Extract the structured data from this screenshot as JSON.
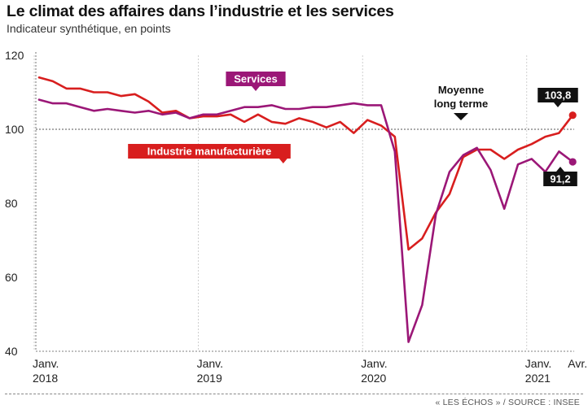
{
  "header": {
    "title": "Le climat des affaires dans l’industrie et les services",
    "subtitle": "Indicateur synthétique, en points"
  },
  "footer": {
    "source": "« LES ÉCHOS » / SOURCE : INSEE"
  },
  "colors": {
    "industrie": "#d81e1e",
    "services": "#9b1777",
    "label_box": "#111111"
  },
  "chart_data": {
    "type": "line",
    "title": "Le climat des affaires dans l’industrie et les services",
    "ylabel": "Indicateur synthétique, en points",
    "ylim": [
      40,
      120
    ],
    "yticks": [
      40,
      60,
      80,
      100,
      120
    ],
    "xticks": [
      {
        "index": 0,
        "line1": "Janv.",
        "line2": "2018"
      },
      {
        "index": 12,
        "line1": "Janv.",
        "line2": "2019"
      },
      {
        "index": 24,
        "line1": "Janv.",
        "line2": "2020"
      },
      {
        "index": 36,
        "line1": "Janv.",
        "line2": "2021"
      },
      {
        "index": 39,
        "line1": "Avr.",
        "line2": ""
      }
    ],
    "reference_line": {
      "value": 100,
      "label_line1": "Moyenne",
      "label_line2": "long terme"
    },
    "grid": false,
    "series": [
      {
        "name": "Industrie manufacturière",
        "values": [
          114,
          113,
          111,
          111,
          110,
          110,
          109,
          109.5,
          107.5,
          104.5,
          105,
          103,
          103.5,
          103.5,
          104,
          102,
          104,
          102,
          101.5,
          103,
          102,
          100.5,
          102,
          99,
          102.5,
          101,
          98,
          67.5,
          70.5,
          77.5,
          82.5,
          92.5,
          94.5,
          94.5,
          92,
          94.5,
          96,
          98,
          99,
          103.8
        ],
        "last_label": "103,8"
      },
      {
        "name": "Services",
        "values": [
          108,
          107,
          107,
          106,
          105,
          105.5,
          105,
          104.5,
          105,
          104,
          104.5,
          103,
          104,
          104,
          105,
          106,
          106,
          106.5,
          105.5,
          105.5,
          106,
          106,
          106.5,
          107,
          106.5,
          106.5,
          94,
          42.5,
          52.5,
          77,
          88.5,
          93,
          95,
          89,
          78.5,
          90.5,
          92,
          88.5,
          94,
          91.2
        ],
        "last_label": "91,2"
      }
    ]
  }
}
